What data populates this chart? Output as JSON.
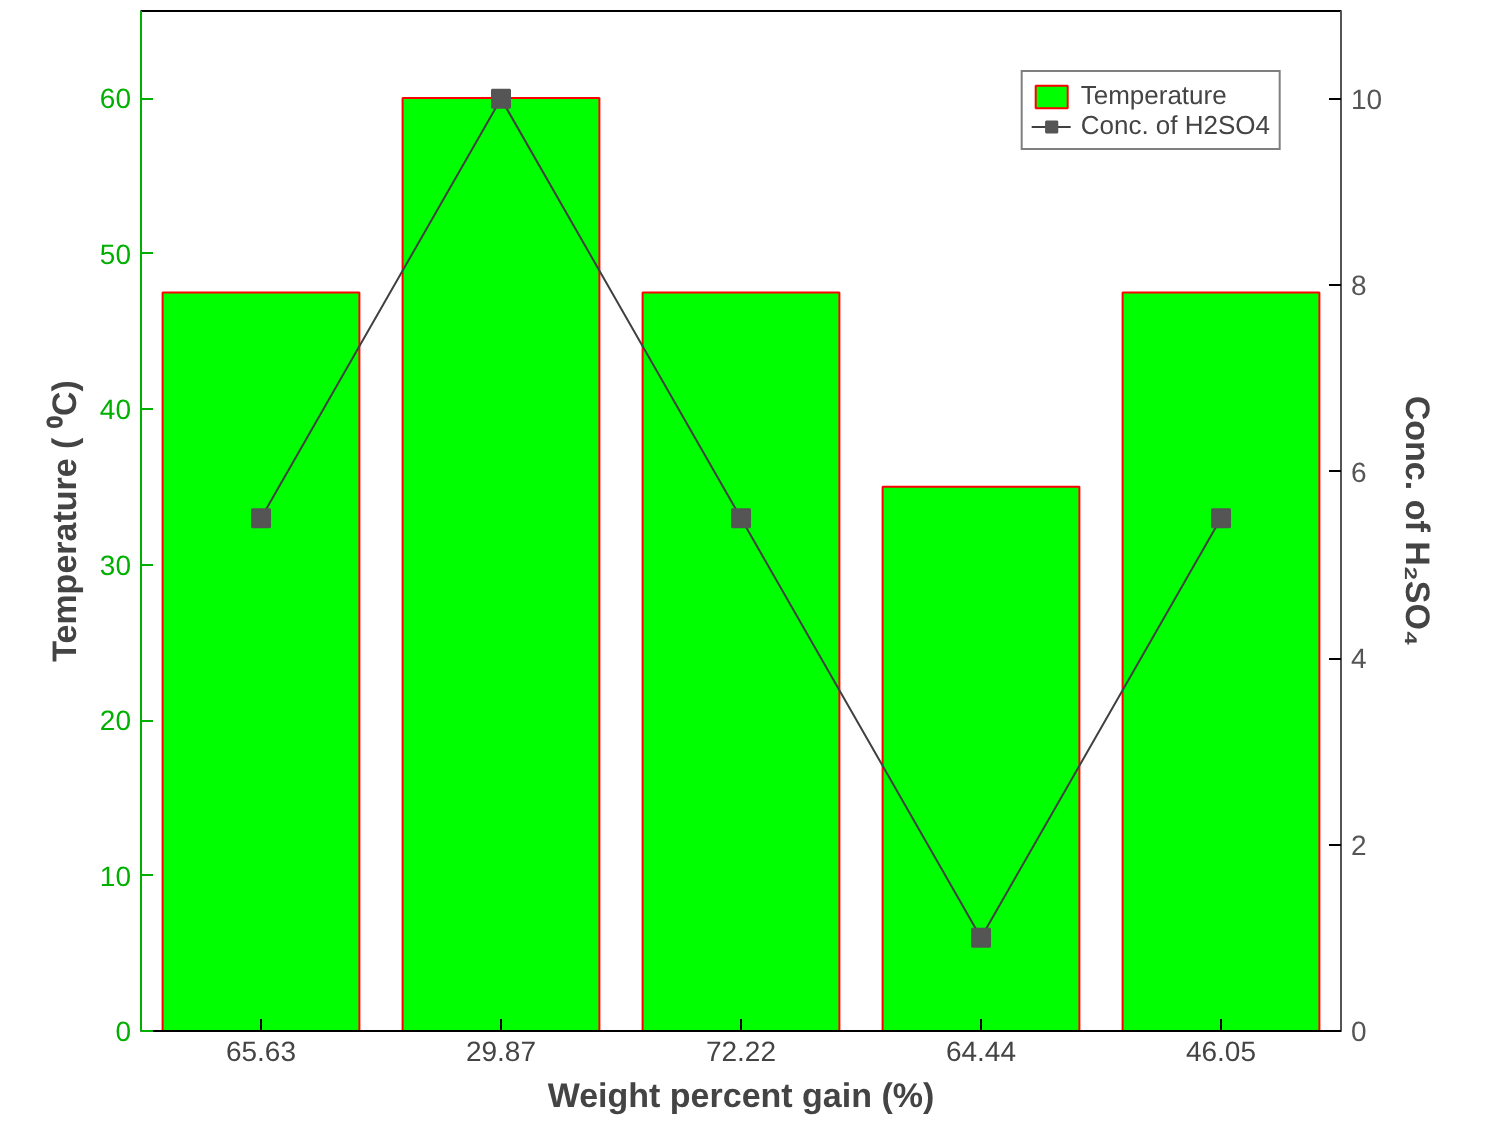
{
  "chart_data": {
    "type": "bar",
    "xlabel": "Weight percent gain (%)",
    "ylabel": "Temperature ( ⁰C)",
    "y2label": "Conc. of H₂SO₄",
    "categories": [
      "65.63",
      "29.87",
      "72.22",
      "64.44",
      "46.05"
    ],
    "series": [
      {
        "name": "Temperature",
        "color": "#00ff00",
        "values": [
          47.5,
          60,
          47.5,
          35,
          47.5
        ]
      },
      {
        "name": "Conc. of H2SO4",
        "type": "line",
        "axis": "y2",
        "color": "#404040",
        "marker": "square",
        "values": [
          5.5,
          10,
          5.5,
          1,
          5.5
        ]
      }
    ],
    "ylim": [
      0,
      65.6
    ],
    "yticks": [
      0,
      10,
      20,
      30,
      40,
      50,
      60
    ],
    "y2lim": [
      0,
      10.94
    ],
    "y2ticks": [
      0,
      2,
      4,
      6,
      8,
      10
    ],
    "legend": "top right",
    "grid": false
  }
}
